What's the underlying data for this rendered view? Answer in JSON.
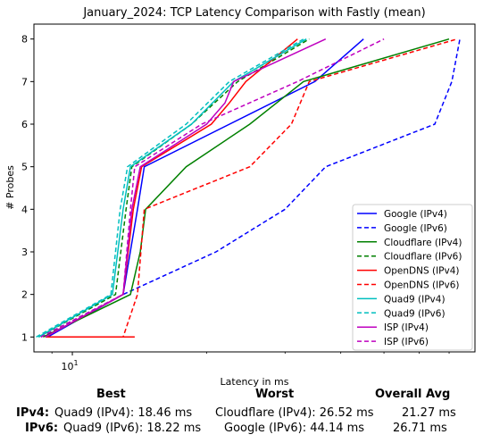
{
  "chart_data": {
    "type": "line",
    "title": "January_2024: TCP Latency Comparison with Fastly (mean)",
    "xlabel": "Latency in ms",
    "ylabel": "# Probes",
    "xscale": "log",
    "xlim": [
      8.2,
      80
    ],
    "ylim": [
      0.65,
      8.35
    ],
    "xticks": [
      {
        "value": 10,
        "label": "10^1"
      }
    ],
    "yticks": [
      1,
      2,
      3,
      4,
      5,
      6,
      7,
      8
    ],
    "grid": false,
    "legend": "bottom-right",
    "series": [
      {
        "name": "Google (IPv4)",
        "color": "#0000ff",
        "dash": "solid",
        "x": [
          8.8,
          13.0,
          14.0,
          14.5,
          35.0,
          45.0
        ],
        "y": [
          1,
          2,
          4,
          5,
          7,
          8
        ]
      },
      {
        "name": "Google (IPv6)",
        "color": "#0000ff",
        "dash": "dashed",
        "x": [
          8.5,
          13.0,
          21.0,
          30.0,
          37.0,
          65.0,
          71.0,
          74.0
        ],
        "y": [
          1,
          2,
          3,
          4,
          5,
          6,
          7,
          8
        ]
      },
      {
        "name": "Cloudflare (IPv4)",
        "color": "#008000",
        "dash": "solid",
        "x": [
          8.6,
          13.5,
          14.2,
          14.6,
          18.0,
          25.0,
          33.0,
          70.0
        ],
        "y": [
          1,
          2,
          3,
          4,
          5,
          6,
          7,
          8
        ]
      },
      {
        "name": "Cloudflare (IPv6)",
        "color": "#008000",
        "dash": "dashed",
        "x": [
          8.4,
          12.5,
          13.2,
          13.6,
          18.5,
          23.5,
          34.0
        ],
        "y": [
          1,
          2,
          4,
          5,
          6,
          7,
          8
        ]
      },
      {
        "name": "OpenDNS (IPv4)",
        "color": "#ff0000",
        "dash": "solid",
        "x": [
          13.8,
          13.5,
          8.7,
          13.0,
          13.7,
          14.3,
          20.5,
          22.5,
          24.5,
          32.0
        ],
        "y": [
          1,
          1,
          1,
          2,
          4,
          5,
          6,
          6.5,
          7,
          8
        ]
      },
      {
        "name": "OpenDNS (IPv6)",
        "color": "#ff0000",
        "dash": "dashed",
        "x": [
          12.8,
          13.0,
          14.0,
          14.5,
          25.0,
          31.0,
          34.0,
          73.0
        ],
        "y": [
          1,
          1,
          2,
          4,
          5,
          6,
          7,
          8
        ]
      },
      {
        "name": "Quad9 (IPv4)",
        "color": "#00bfbf",
        "dash": "solid",
        "x": [
          8.4,
          12.3,
          13.0,
          13.5,
          18.5,
          23.0,
          33.5
        ],
        "y": [
          1,
          2,
          4,
          5,
          6,
          7,
          8
        ]
      },
      {
        "name": "Quad9 (IPv6)",
        "color": "#00bfbf",
        "dash": "dashed",
        "x": [
          8.3,
          12.2,
          12.8,
          13.3,
          18.0,
          22.5,
          33.0
        ],
        "y": [
          1,
          2,
          4,
          5,
          6,
          7,
          8
        ]
      },
      {
        "name": "ISP (IPv4)",
        "color": "#bf00bf",
        "dash": "solid",
        "x": [
          8.7,
          13.0,
          13.6,
          14.2,
          20.0,
          22.0,
          23.0,
          37.0
        ],
        "y": [
          1,
          2,
          4,
          5,
          6,
          6.5,
          7,
          8
        ]
      },
      {
        "name": "ISP (IPv6)",
        "color": "#bf00bf",
        "dash": "dashed",
        "x": [
          8.5,
          13.0,
          13.5,
          13.8,
          19.5,
          32.0,
          50.0
        ],
        "y": [
          1,
          2,
          4,
          5,
          6,
          7,
          8
        ]
      }
    ]
  },
  "summary": {
    "headers": {
      "best": "Best",
      "worst": "Worst",
      "avg": "Overall Avg"
    },
    "rows": [
      {
        "label": "IPv4",
        "colon": ":",
        "best": "Quad9 (IPv4): 18.46 ms",
        "worst": "Cloudflare (IPv4): 26.52 ms",
        "avg": "21.27 ms"
      },
      {
        "label": "IPv6",
        "colon": ":",
        "best": "Quad9 (IPv6): 18.22 ms",
        "worst": "Google (IPv6): 44.14 ms",
        "avg": "26.71 ms"
      }
    ]
  }
}
